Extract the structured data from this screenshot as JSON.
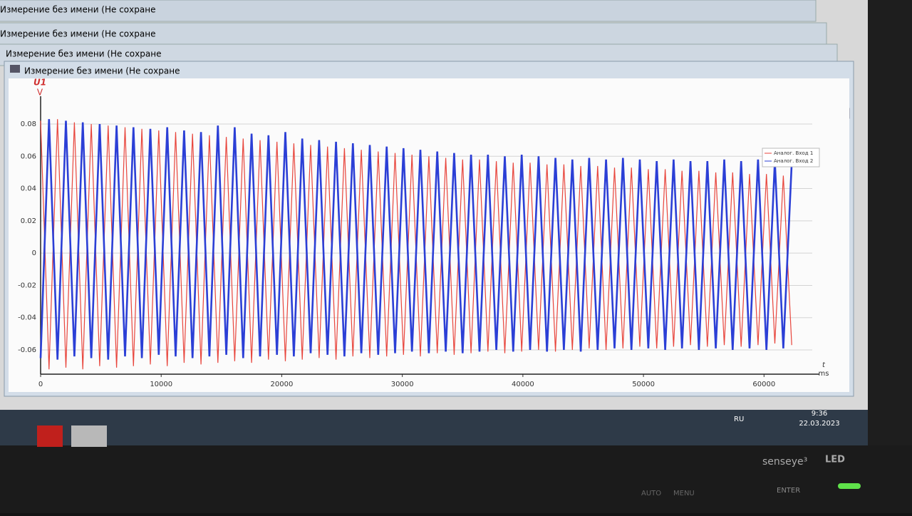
{
  "windows": [
    "Измерение без имени (Не сохране",
    "Измерение без имени (Не сохране",
    "Измерение без имени (Не сохране",
    "Измерение без имени (Не сохране"
  ],
  "chart_data": {
    "type": "line",
    "y_label": "U1",
    "y_unit": "V",
    "x_label": "t",
    "x_unit": "ms",
    "x": [
      0,
      700,
      1400,
      2100,
      2800,
      3500,
      4200,
      4900,
      5600,
      6300,
      7000,
      7700,
      8400,
      9100,
      9800,
      10500,
      11200,
      11900,
      12600,
      13300,
      14000,
      14700,
      15400,
      16100,
      16800,
      17500,
      18200,
      18900,
      19600,
      20300,
      21000,
      21700,
      22400,
      23100,
      23800,
      24500,
      25200,
      25900,
      26600,
      27300,
      28000,
      28700,
      29400,
      30100,
      30800,
      31500,
      32200,
      32900,
      33600,
      34300,
      35000,
      35700,
      36400,
      37100,
      37800,
      38500,
      39200,
      39900,
      40600,
      41300,
      42000,
      42700,
      43400,
      44100,
      44800,
      45500,
      46200,
      46900,
      47600,
      48300,
      49000,
      49700,
      50400,
      51100,
      51800,
      52500,
      53200,
      53900,
      54600,
      55300,
      56000,
      56700,
      57400,
      58100,
      58800,
      59500,
      60200,
      60900,
      61600,
      62300
    ],
    "series": [
      {
        "name": "Аналог. Вход 1",
        "color": "#e8453c",
        "width": 1.2,
        "values": [
          0.082,
          -0.072,
          0.083,
          -0.071,
          0.081,
          -0.072,
          0.08,
          -0.07,
          0.079,
          -0.071,
          0.078,
          -0.07,
          0.077,
          -0.069,
          0.076,
          -0.07,
          0.075,
          -0.068,
          0.074,
          -0.069,
          0.073,
          -0.068,
          0.072,
          -0.067,
          0.071,
          -0.068,
          0.07,
          -0.066,
          0.069,
          -0.067,
          0.068,
          -0.066,
          0.067,
          -0.065,
          0.066,
          -0.066,
          0.065,
          -0.064,
          0.064,
          -0.065,
          0.063,
          -0.064,
          0.062,
          -0.063,
          0.061,
          -0.064,
          0.06,
          -0.062,
          0.059,
          -0.063,
          0.058,
          -0.062,
          0.058,
          -0.061,
          0.057,
          -0.062,
          0.056,
          -0.061,
          0.056,
          -0.06,
          0.055,
          -0.061,
          0.055,
          -0.06,
          0.054,
          -0.059,
          0.054,
          -0.06,
          0.053,
          -0.059,
          0.053,
          -0.058,
          0.052,
          -0.059,
          0.052,
          -0.058,
          0.051,
          -0.057,
          0.051,
          -0.058,
          0.05,
          -0.057,
          0.05,
          -0.058,
          0.049,
          -0.057,
          0.049,
          -0.056,
          0.048,
          -0.057
        ]
      },
      {
        "name": "Аналог. Вход 2",
        "color": "#2b3fd6",
        "width": 2.6,
        "values": [
          -0.065,
          0.083,
          -0.066,
          0.082,
          -0.064,
          0.081,
          -0.065,
          0.08,
          -0.066,
          0.079,
          -0.064,
          0.078,
          -0.065,
          0.077,
          -0.063,
          0.078,
          -0.064,
          0.076,
          -0.065,
          0.075,
          -0.064,
          0.079,
          -0.063,
          0.078,
          -0.065,
          0.074,
          -0.064,
          0.073,
          -0.063,
          0.075,
          -0.064,
          0.071,
          -0.062,
          0.07,
          -0.063,
          0.069,
          -0.064,
          0.068,
          -0.062,
          0.067,
          -0.063,
          0.066,
          -0.062,
          0.065,
          -0.061,
          0.064,
          -0.062,
          0.063,
          -0.061,
          0.062,
          -0.062,
          0.061,
          -0.061,
          0.061,
          -0.06,
          0.06,
          -0.061,
          0.061,
          -0.06,
          0.06,
          -0.061,
          0.059,
          -0.06,
          0.058,
          -0.061,
          0.059,
          -0.06,
          0.058,
          -0.059,
          0.059,
          -0.06,
          0.058,
          -0.059,
          0.057,
          -0.06,
          0.058,
          -0.059,
          0.057,
          -0.06,
          0.057,
          -0.059,
          0.058,
          -0.06,
          0.057,
          -0.059,
          0.058,
          -0.06,
          0.057,
          -0.059,
          0.056
        ]
      }
    ],
    "xlim": [
      0,
      64000
    ],
    "xticks": [
      0,
      10000,
      20000,
      30000,
      40000,
      50000,
      60000
    ],
    "ylim": [
      -0.075,
      0.095
    ],
    "yticks": [
      -0.06,
      -0.04,
      -0.02,
      0,
      0.02,
      0.04,
      0.06,
      0.08
    ],
    "grid": true,
    "legend": "upper right"
  },
  "taskbar": {
    "language": "RU",
    "time": "9:36",
    "date": "22.03.2023"
  },
  "monitor": {
    "brand": "senseye³",
    "badge": "LED",
    "buttons": [
      "AUTO",
      "MENU",
      "ENTER"
    ]
  }
}
